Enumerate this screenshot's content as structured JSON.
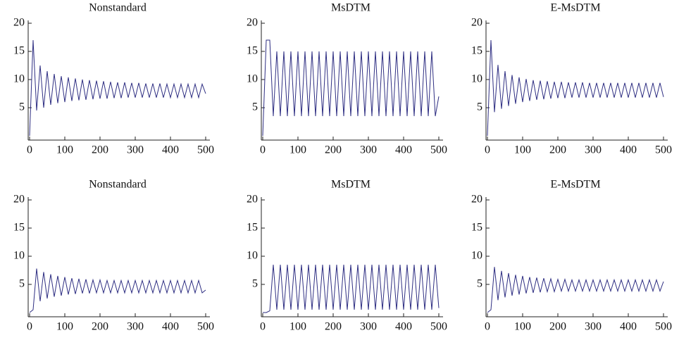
{
  "chart_data": [
    {
      "type": "line",
      "title": "Nonstandard",
      "color": "#2e2e82",
      "x": [
        0,
        10,
        20,
        30,
        40,
        50,
        60,
        70,
        80,
        90,
        100,
        110,
        120,
        130,
        140,
        150,
        160,
        170,
        180,
        190,
        200,
        210,
        220,
        230,
        240,
        250,
        260,
        270,
        280,
        290,
        300,
        310,
        320,
        330,
        340,
        350,
        360,
        370,
        380,
        390,
        400,
        410,
        420,
        430,
        440,
        450,
        460,
        470,
        480,
        490,
        500
      ],
      "values": [
        0,
        17,
        4.5,
        12.5,
        5,
        11.5,
        5.5,
        11,
        5.8,
        10.6,
        6,
        10.4,
        6.2,
        10.2,
        6.3,
        10,
        6.4,
        9.9,
        6.5,
        9.8,
        6.6,
        9.7,
        6.6,
        9.6,
        6.7,
        9.5,
        6.7,
        9.5,
        6.8,
        9.4,
        6.8,
        9.4,
        6.8,
        9.3,
        6.8,
        9.3,
        6.8,
        9.3,
        6.8,
        9.2,
        6.8,
        9.2,
        6.8,
        9.2,
        6.8,
        9.2,
        6.8,
        9.2,
        6.8,
        9.2,
        7.5
      ],
      "xlim": [
        0,
        500
      ],
      "ylim": [
        0,
        20
      ],
      "xticks": [
        0,
        100,
        200,
        300,
        400,
        500
      ],
      "yticks": [
        5,
        10,
        15,
        20
      ]
    },
    {
      "type": "line",
      "title": "MsDTM",
      "color": "#2e2e82",
      "x": [
        0,
        10,
        20,
        30,
        40,
        50,
        60,
        70,
        80,
        90,
        100,
        110,
        120,
        130,
        140,
        150,
        160,
        170,
        180,
        190,
        200,
        210,
        220,
        230,
        240,
        250,
        260,
        270,
        280,
        290,
        300,
        310,
        320,
        330,
        340,
        350,
        360,
        370,
        380,
        390,
        400,
        410,
        420,
        430,
        440,
        450,
        460,
        470,
        480,
        490,
        500
      ],
      "values": [
        0,
        17,
        17,
        3.5,
        15,
        3.5,
        15,
        3.5,
        15,
        3.5,
        15,
        3.5,
        15,
        3.5,
        15,
        3.5,
        15,
        3.5,
        15,
        3.5,
        15,
        3.5,
        15,
        3.5,
        15,
        3.5,
        15,
        3.5,
        15,
        3.5,
        15,
        3.5,
        15,
        3.5,
        15,
        3.5,
        15,
        3.5,
        15,
        3.5,
        15,
        3.5,
        15,
        3.5,
        15,
        3.5,
        15,
        3.5,
        15,
        3.5,
        7
      ],
      "xlim": [
        0,
        500
      ],
      "ylim": [
        0,
        20
      ],
      "xticks": [
        0,
        100,
        200,
        300,
        400,
        500
      ],
      "yticks": [
        5,
        10,
        15,
        20
      ]
    },
    {
      "type": "line",
      "title": "E-MsDTM",
      "color": "#2e2e82",
      "x": [
        0,
        10,
        20,
        30,
        40,
        50,
        60,
        70,
        80,
        90,
        100,
        110,
        120,
        130,
        140,
        150,
        160,
        170,
        180,
        190,
        200,
        210,
        220,
        230,
        240,
        250,
        260,
        270,
        280,
        290,
        300,
        310,
        320,
        330,
        340,
        350,
        360,
        370,
        380,
        390,
        400,
        410,
        420,
        430,
        440,
        450,
        460,
        470,
        480,
        490,
        500
      ],
      "values": [
        0,
        17,
        4.2,
        12.6,
        4.8,
        11.5,
        5.3,
        10.8,
        5.7,
        10.4,
        6,
        10.1,
        6.2,
        9.9,
        6.4,
        9.8,
        6.5,
        9.7,
        6.6,
        9.6,
        6.7,
        9.6,
        6.7,
        9.5,
        6.8,
        9.5,
        6.8,
        9.5,
        6.8,
        9.4,
        6.8,
        9.4,
        6.8,
        9.4,
        6.8,
        9.4,
        6.8,
        9.4,
        6.8,
        9.4,
        6.8,
        9.4,
        6.8,
        9.4,
        6.8,
        9.4,
        6.8,
        9.4,
        6.8,
        9.4,
        6.9
      ],
      "xlim": [
        0,
        500
      ],
      "ylim": [
        0,
        20
      ],
      "xticks": [
        0,
        100,
        200,
        300,
        400,
        500
      ],
      "yticks": [
        5,
        10,
        15,
        20
      ]
    },
    {
      "type": "line",
      "title": "Nonstandard",
      "color": "#2e2e82",
      "x": [
        0,
        10,
        20,
        30,
        40,
        50,
        60,
        70,
        80,
        90,
        100,
        110,
        120,
        130,
        140,
        150,
        160,
        170,
        180,
        190,
        200,
        210,
        220,
        230,
        240,
        250,
        260,
        270,
        280,
        290,
        300,
        310,
        320,
        330,
        340,
        350,
        360,
        370,
        380,
        390,
        400,
        410,
        420,
        430,
        440,
        450,
        460,
        470,
        480,
        490,
        500
      ],
      "values": [
        0,
        0.5,
        7.8,
        2,
        7.2,
        2.5,
        6.8,
        2.8,
        6.5,
        3,
        6.3,
        3.2,
        6.1,
        3.3,
        6,
        3.4,
        5.9,
        3.4,
        5.8,
        3.5,
        5.8,
        3.5,
        5.7,
        3.5,
        5.7,
        3.5,
        5.7,
        3.5,
        5.7,
        3.5,
        5.7,
        3.5,
        5.7,
        3.5,
        5.7,
        3.5,
        5.7,
        3.5,
        5.7,
        3.5,
        5.7,
        3.5,
        5.7,
        3.5,
        5.7,
        3.5,
        5.7,
        3.5,
        5.7,
        3.5,
        4
      ],
      "xlim": [
        0,
        500
      ],
      "ylim": [
        0,
        20
      ],
      "xticks": [
        0,
        100,
        200,
        300,
        400,
        500
      ],
      "yticks": [
        5,
        10,
        15,
        20
      ]
    },
    {
      "type": "line",
      "title": "MsDTM",
      "color": "#2e2e82",
      "x": [
        0,
        10,
        20,
        30,
        40,
        50,
        60,
        70,
        80,
        90,
        100,
        110,
        120,
        130,
        140,
        150,
        160,
        170,
        180,
        190,
        200,
        210,
        220,
        230,
        240,
        250,
        260,
        270,
        280,
        290,
        300,
        310,
        320,
        330,
        340,
        350,
        360,
        370,
        380,
        390,
        400,
        410,
        420,
        430,
        440,
        450,
        460,
        470,
        480,
        490,
        500
      ],
      "values": [
        0,
        0,
        0.3,
        8.5,
        0.5,
        8.5,
        0.5,
        8.5,
        0.5,
        8.5,
        0.5,
        8.5,
        0.5,
        8.5,
        0.5,
        8.5,
        0.5,
        8.5,
        0.5,
        8.5,
        0.5,
        8.5,
        0.5,
        8.5,
        0.5,
        8.5,
        0.5,
        8.5,
        0.5,
        8.5,
        0.5,
        8.5,
        0.5,
        8.5,
        0.5,
        8.5,
        0.5,
        8.5,
        0.5,
        8.5,
        0.5,
        8.5,
        0.5,
        8.5,
        0.5,
        8.5,
        0.5,
        8.5,
        0.5,
        8.5,
        0.8
      ],
      "xlim": [
        0,
        500
      ],
      "ylim": [
        0,
        20
      ],
      "xticks": [
        0,
        100,
        200,
        300,
        400,
        500
      ],
      "yticks": [
        5,
        10,
        15,
        20
      ]
    },
    {
      "type": "line",
      "title": "E-MsDTM",
      "color": "#2e2e82",
      "x": [
        0,
        10,
        20,
        30,
        40,
        50,
        60,
        70,
        80,
        90,
        100,
        110,
        120,
        130,
        140,
        150,
        160,
        170,
        180,
        190,
        200,
        210,
        220,
        230,
        240,
        250,
        260,
        270,
        280,
        290,
        300,
        310,
        320,
        330,
        340,
        350,
        360,
        370,
        380,
        390,
        400,
        410,
        420,
        430,
        440,
        450,
        460,
        470,
        480,
        490,
        500
      ],
      "values": [
        0,
        0.5,
        8.1,
        2.2,
        7.4,
        2.7,
        7,
        3,
        6.7,
        3.2,
        6.5,
        3.4,
        6.3,
        3.5,
        6.2,
        3.6,
        6.1,
        3.7,
        6,
        3.7,
        5.9,
        3.8,
        5.9,
        3.8,
        5.8,
        3.8,
        5.8,
        3.8,
        5.8,
        3.8,
        5.8,
        3.8,
        5.8,
        3.8,
        5.8,
        3.8,
        5.8,
        3.8,
        5.8,
        3.8,
        5.8,
        3.8,
        5.8,
        3.8,
        5.8,
        3.8,
        5.8,
        3.8,
        5.8,
        3.8,
        5.5
      ],
      "xlim": [
        0,
        500
      ],
      "ylim": [
        0,
        20
      ],
      "xticks": [
        0,
        100,
        200,
        300,
        400,
        500
      ],
      "yticks": [
        5,
        10,
        15,
        20
      ]
    }
  ]
}
